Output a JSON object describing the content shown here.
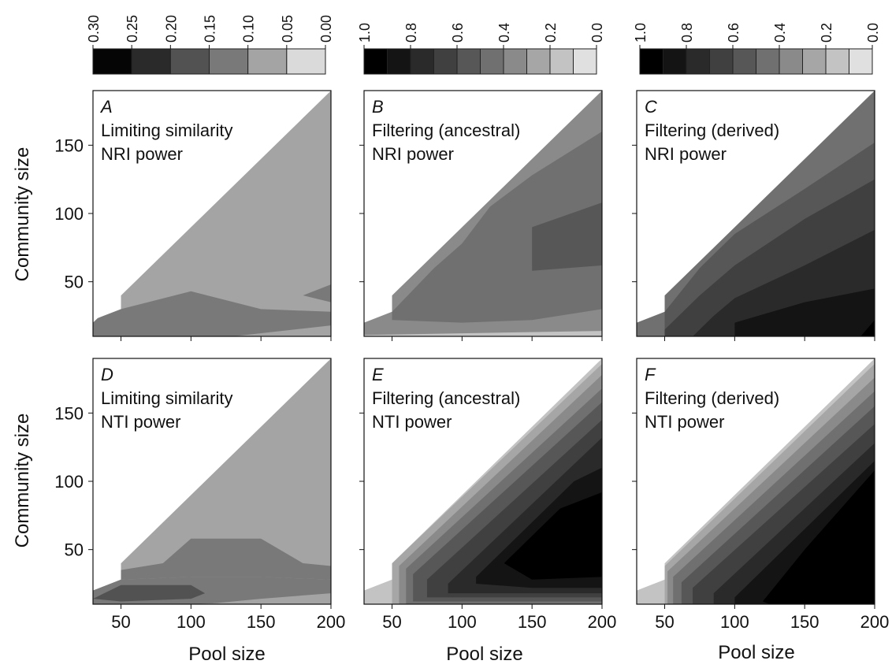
{
  "figure": {
    "panel_size_label": "Pool size",
    "community_label": "Community size"
  },
  "colorbars": [
    {
      "id": "cb-similarity",
      "ticks": [
        "0.30",
        "0.25",
        "0.20",
        "0.15",
        "0.10",
        "0.05",
        "0.00"
      ],
      "colors": [
        "#050505",
        "#2a2a2a",
        "#525252",
        "#797979",
        "#a4a4a4",
        "#dadada"
      ]
    },
    {
      "id": "cb-filtering-ancestral",
      "ticks": [
        "1.0",
        "0.8",
        "0.6",
        "0.4",
        "0.2",
        "0.0"
      ],
      "colors": [
        "#000000",
        "#141414",
        "#2a2a2a",
        "#404040",
        "#575757",
        "#707070",
        "#8a8a8a",
        "#a6a6a6",
        "#c3c3c3",
        "#e0e0e0"
      ]
    },
    {
      "id": "cb-filtering-derived",
      "ticks": [
        "1.0",
        "0.8",
        "0.6",
        "0.4",
        "0.2",
        "0.0"
      ],
      "colors": [
        "#000000",
        "#141414",
        "#2a2a2a",
        "#404040",
        "#575757",
        "#707070",
        "#8a8a8a",
        "#a6a6a6",
        "#c3c3c3",
        "#e0e0e0"
      ]
    }
  ],
  "chart_data": [
    {
      "type": "heatmap",
      "letter": "A",
      "lines": [
        "Limiting similarity",
        "NRI power"
      ],
      "xlabel": "",
      "ylabel": "Community size",
      "xlim": [
        30,
        200
      ],
      "ylim": [
        10,
        190
      ],
      "xticks": [],
      "yticks": [
        "150",
        "100",
        "50"
      ],
      "base_color": "#a4a4a4",
      "regions": [
        {
          "power": "0.10-0.15",
          "color": "#797979",
          "points": [
            [
              30,
              10
            ],
            [
              200,
              10
            ],
            [
              200,
              28
            ],
            [
              150,
              30
            ],
            [
              100,
              43
            ],
            [
              50,
              30
            ],
            [
              30,
              22
            ]
          ]
        },
        {
          "power": "0.10-0.15",
          "color": "#797979",
          "points": [
            [
              180,
              40
            ],
            [
              200,
              48
            ],
            [
              200,
              35
            ]
          ]
        },
        {
          "power": "0.05-0.10",
          "color": "#a4a4a4",
          "points": [
            [
              130,
              10
            ],
            [
              200,
              10
            ],
            [
              200,
              18
            ]
          ]
        }
      ]
    },
    {
      "type": "heatmap",
      "letter": "B",
      "lines": [
        "Filtering (ancestral)",
        "NRI power"
      ],
      "xlabel": "",
      "ylabel": "",
      "xlim": [
        30,
        200
      ],
      "ylim": [
        10,
        190
      ],
      "xticks": [],
      "yticks": [],
      "base_color": "#8a8a8a",
      "regions": [
        {
          "power": "0.4-0.5",
          "color": "#707070",
          "points": [
            [
              50,
              28
            ],
            [
              80,
              60
            ],
            [
              100,
              78
            ],
            [
              120,
              105
            ],
            [
              150,
              128
            ],
            [
              200,
              160
            ],
            [
              200,
              30
            ],
            [
              150,
              22
            ],
            [
              100,
              20
            ],
            [
              50,
              22
            ]
          ]
        },
        {
          "power": "0.5-0.6",
          "color": "#575757",
          "points": [
            [
              150,
              58
            ],
            [
              150,
              90
            ],
            [
              200,
              108
            ],
            [
              200,
              62
            ]
          ]
        },
        {
          "power": "0.3-0.4",
          "color": "#8a8a8a",
          "points": [
            [
              30,
              10
            ],
            [
              200,
              10
            ],
            [
              200,
              22
            ],
            [
              150,
              18
            ],
            [
              100,
              18
            ],
            [
              50,
              16
            ],
            [
              30,
              12
            ]
          ]
        },
        {
          "power": "0.1-0.2",
          "color": "#c3c3c3",
          "points": [
            [
              30,
              10
            ],
            [
              200,
              10
            ],
            [
              200,
              14
            ],
            [
              30,
              11
            ]
          ]
        }
      ]
    },
    {
      "type": "heatmap",
      "letter": "C",
      "lines": [
        "Filtering (derived)",
        "NRI power"
      ],
      "xlabel": "",
      "ylabel": "",
      "xlim": [
        30,
        200
      ],
      "ylim": [
        10,
        190
      ],
      "xticks": [],
      "yticks": [],
      "base_color": "#707070",
      "regions": [
        {
          "power": "0.5-0.6",
          "color": "#575757",
          "points": [
            [
              50,
              28
            ],
            [
              75,
              60
            ],
            [
              100,
              85
            ],
            [
              150,
              118
            ],
            [
              200,
              152
            ],
            [
              200,
              10
            ],
            [
              50,
              10
            ]
          ]
        },
        {
          "power": "0.6-0.7",
          "color": "#404040",
          "points": [
            [
              50,
              15
            ],
            [
              75,
              40
            ],
            [
              100,
              62
            ],
            [
              150,
              96
            ],
            [
              200,
              125
            ],
            [
              200,
              10
            ],
            [
              50,
              10
            ]
          ]
        },
        {
          "power": "0.7-0.8",
          "color": "#2a2a2a",
          "points": [
            [
              70,
              10
            ],
            [
              85,
              25
            ],
            [
              100,
              38
            ],
            [
              150,
              62
            ],
            [
              200,
              88
            ],
            [
              200,
              10
            ]
          ]
        },
        {
          "power": "0.8-0.9",
          "color": "#141414",
          "points": [
            [
              100,
              10
            ],
            [
              100,
              20
            ],
            [
              150,
              35
            ],
            [
              200,
              45
            ],
            [
              200,
              10
            ]
          ]
        },
        {
          "power": "0.9-1.0",
          "color": "#000000",
          "points": [
            [
              190,
              10
            ],
            [
              200,
              22
            ],
            [
              200,
              10
            ]
          ]
        }
      ]
    },
    {
      "type": "heatmap",
      "letter": "D",
      "lines": [
        "Limiting similarity",
        "NTI power"
      ],
      "xlabel": "Pool size",
      "ylabel": "Community size",
      "xlim": [
        30,
        200
      ],
      "ylim": [
        10,
        190
      ],
      "xticks": [
        "50",
        "100",
        "150",
        "200"
      ],
      "yticks": [
        "150",
        "100",
        "50"
      ],
      "base_color": "#a4a4a4",
      "regions": [
        {
          "power": "0.10-0.15",
          "color": "#797979",
          "points": [
            [
              50,
              35
            ],
            [
              80,
              40
            ],
            [
              100,
              58
            ],
            [
              150,
              58
            ],
            [
              180,
              40
            ],
            [
              200,
              38
            ],
            [
              200,
              28
            ],
            [
              150,
              30
            ],
            [
              100,
              30
            ],
            [
              50,
              28
            ]
          ]
        },
        {
          "power": "0.10-0.15",
          "color": "#797979",
          "points": [
            [
              30,
              10
            ],
            [
              30,
              20
            ],
            [
              50,
              28
            ],
            [
              100,
              30
            ],
            [
              150,
              30
            ],
            [
              200,
              28
            ],
            [
              200,
              16
            ],
            [
              150,
              12
            ],
            [
              100,
              10
            ]
          ]
        },
        {
          "power": "0.15-0.20",
          "color": "#525252",
          "points": [
            [
              30,
              14
            ],
            [
              50,
              24
            ],
            [
              100,
              24
            ],
            [
              110,
              18
            ],
            [
              100,
              14
            ],
            [
              50,
              12
            ]
          ]
        },
        {
          "power": "0.05-0.10",
          "color": "#a4a4a4",
          "points": [
            [
              110,
              10
            ],
            [
              150,
              14
            ],
            [
              200,
              18
            ],
            [
              200,
              10
            ]
          ]
        }
      ]
    },
    {
      "type": "heatmap",
      "letter": "E",
      "lines": [
        "Filtering (ancestral)",
        "NTI power"
      ],
      "xlabel": "Pool size",
      "ylabel": "",
      "xlim": [
        30,
        200
      ],
      "ylim": [
        10,
        190
      ],
      "xticks": [
        "50",
        "100",
        "150",
        "200"
      ],
      "yticks": [],
      "base_color": "#c3c3c3",
      "regions": [
        {
          "power": "0.2-0.3",
          "color": "#a6a6a6",
          "points": [
            [
              50,
              40
            ],
            [
              200,
              186
            ],
            [
              200,
              10
            ],
            [
              50,
              10
            ]
          ]
        },
        {
          "power": "0.3-0.4",
          "color": "#8a8a8a",
          "points": [
            [
              55,
              38
            ],
            [
              200,
              178
            ],
            [
              200,
              10
            ],
            [
              55,
              10
            ]
          ]
        },
        {
          "power": "0.4-0.5",
          "color": "#707070",
          "points": [
            [
              60,
              36
            ],
            [
              200,
              168
            ],
            [
              200,
              10
            ],
            [
              60,
              10
            ]
          ]
        },
        {
          "power": "0.5-0.6",
          "color": "#575757",
          "points": [
            [
              65,
              32
            ],
            [
              200,
              158
            ],
            [
              200,
              12
            ],
            [
              65,
              12
            ]
          ]
        },
        {
          "power": "0.6-0.7",
          "color": "#404040",
          "points": [
            [
              75,
              28
            ],
            [
              200,
              145
            ],
            [
              200,
              15
            ],
            [
              75,
              15
            ]
          ]
        },
        {
          "power": "0.7-0.8",
          "color": "#2a2a2a",
          "points": [
            [
              90,
              25
            ],
            [
              200,
              132
            ],
            [
              200,
              18
            ],
            [
              90,
              18
            ]
          ]
        },
        {
          "power": "0.8-0.9",
          "color": "#141414",
          "points": [
            [
              110,
              30
            ],
            [
              180,
              100
            ],
            [
              200,
              110
            ],
            [
              200,
              22
            ],
            [
              150,
              22
            ],
            [
              110,
              25
            ]
          ]
        },
        {
          "power": "0.9-1.0",
          "color": "#000000",
          "points": [
            [
              130,
              40
            ],
            [
              170,
              80
            ],
            [
              200,
              92
            ],
            [
              200,
              30
            ],
            [
              150,
              28
            ]
          ]
        }
      ]
    },
    {
      "type": "heatmap",
      "letter": "F",
      "lines": [
        "Filtering (derived)",
        "NTI power"
      ],
      "xlabel": "Pool size",
      "ylabel": "",
      "xlim": [
        30,
        200
      ],
      "ylim": [
        10,
        190
      ],
      "xticks": [
        "50",
        "100",
        "150",
        "200"
      ],
      "yticks": [],
      "base_color": "#c3c3c3",
      "regions": [
        {
          "power": "0.2-0.3",
          "color": "#a6a6a6",
          "points": [
            [
              50,
              38
            ],
            [
              200,
              186
            ],
            [
              200,
              10
            ],
            [
              50,
              10
            ]
          ]
        },
        {
          "power": "0.3-0.4",
          "color": "#8a8a8a",
          "points": [
            [
              52,
              34
            ],
            [
              200,
              176
            ],
            [
              200,
              10
            ],
            [
              52,
              10
            ]
          ]
        },
        {
          "power": "0.4-0.5",
          "color": "#707070",
          "points": [
            [
              56,
              30
            ],
            [
              200,
              166
            ],
            [
              200,
              10
            ],
            [
              56,
              10
            ]
          ]
        },
        {
          "power": "0.5-0.6",
          "color": "#575757",
          "points": [
            [
              62,
              26
            ],
            [
              200,
              155
            ],
            [
              200,
              10
            ],
            [
              62,
              10
            ]
          ]
        },
        {
          "power": "0.6-0.7",
          "color": "#404040",
          "points": [
            [
              70,
              22
            ],
            [
              200,
              142
            ],
            [
              200,
              10
            ],
            [
              70,
              10
            ]
          ]
        },
        {
          "power": "0.7-0.8",
          "color": "#2a2a2a",
          "points": [
            [
              85,
              18
            ],
            [
              200,
              128
            ],
            [
              200,
              10
            ],
            [
              85,
              10
            ]
          ]
        },
        {
          "power": "0.8-0.9",
          "color": "#141414",
          "points": [
            [
              100,
              15
            ],
            [
              200,
              115
            ],
            [
              200,
              10
            ],
            [
              100,
              10
            ]
          ]
        },
        {
          "power": "0.9-1.0",
          "color": "#000000",
          "points": [
            [
              120,
              12
            ],
            [
              150,
              50
            ],
            [
              200,
              108
            ],
            [
              200,
              10
            ],
            [
              125,
              10
            ]
          ]
        }
      ]
    }
  ]
}
